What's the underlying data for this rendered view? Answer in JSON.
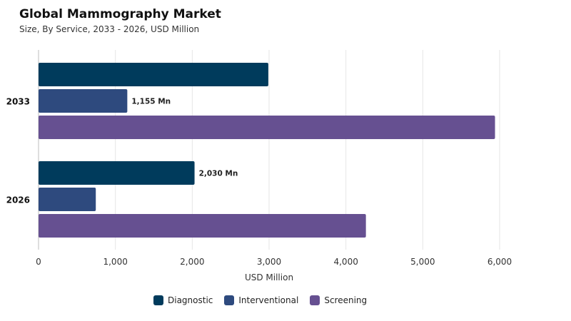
{
  "title": "Global Mammography Market",
  "subtitle": "Size, By Service, 2033 - 2026, USD Million",
  "colors": {
    "Diagnostic": "#003b5c",
    "Interventional": "#2e4a7e",
    "Screening": "#665091"
  },
  "chart_data": {
    "type": "bar",
    "orientation": "horizontal",
    "categories": [
      "2033",
      "2026"
    ],
    "series": [
      {
        "name": "Diagnostic",
        "values": [
          2990,
          2030
        ]
      },
      {
        "name": "Interventional",
        "values": [
          1155,
          745
        ]
      },
      {
        "name": "Screening",
        "values": [
          5940,
          4260
        ]
      }
    ],
    "annotations": [
      {
        "category": "2033",
        "series": "Interventional",
        "text": "1,155 Mn"
      },
      {
        "category": "2026",
        "series": "Diagnostic",
        "text": "2,030 Mn"
      }
    ],
    "xlabel": "USD Million",
    "xlim": [
      0,
      6000
    ],
    "xticks": [
      0,
      1000,
      2000,
      3000,
      4000,
      5000,
      6000
    ],
    "xtick_labels": [
      "0",
      "1,000",
      "2,000",
      "3,000",
      "4,000",
      "5,000",
      "6,000"
    ],
    "grid": true,
    "legend_position": "bottom"
  }
}
